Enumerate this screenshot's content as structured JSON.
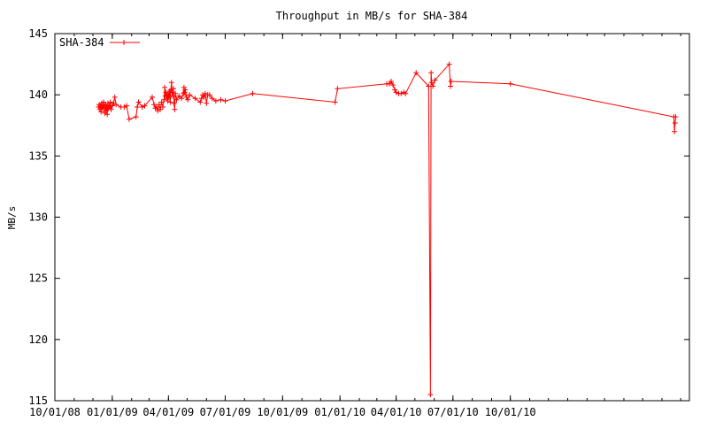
{
  "chart_data": {
    "type": "line",
    "title": "Throughput in MB/s for SHA-384",
    "xlabel": "",
    "ylabel": "MB/s",
    "ylim": [
      115,
      145
    ],
    "xlim": [
      "2008-10-01",
      "2011-07-15"
    ],
    "y_ticks": [
      "115",
      "120",
      "125",
      "130",
      "135",
      "140",
      "145"
    ],
    "x_ticks": [
      "10/01/08",
      "01/01/09",
      "04/01/09",
      "07/01/09",
      "10/01/09",
      "01/01/10",
      "04/01/10",
      "07/01/10",
      "10/01/10"
    ],
    "legend_position": "top-left",
    "grid": false,
    "series": [
      {
        "name": "SHA-384",
        "color": "#ff0000",
        "marker": "plus",
        "points": [
          [
            "2008-12-10",
            139.0
          ],
          [
            "2008-12-11",
            139.2
          ],
          [
            "2008-12-12",
            138.8
          ],
          [
            "2008-12-13",
            139.1
          ],
          [
            "2008-12-14",
            138.6
          ],
          [
            "2008-12-15",
            139.3
          ],
          [
            "2008-12-16",
            139.0
          ],
          [
            "2008-12-17",
            138.9
          ],
          [
            "2008-12-18",
            139.4
          ],
          [
            "2008-12-19",
            139.1
          ],
          [
            "2008-12-20",
            138.5
          ],
          [
            "2008-12-21",
            139.2
          ],
          [
            "2008-12-22",
            138.7
          ],
          [
            "2008-12-23",
            139.0
          ],
          [
            "2008-12-24",
            138.4
          ],
          [
            "2008-12-25",
            139.3
          ],
          [
            "2008-12-26",
            138.9
          ],
          [
            "2008-12-27",
            139.1
          ],
          [
            "2008-12-28",
            139.0
          ],
          [
            "2008-12-29",
            139.4
          ],
          [
            "2008-12-30",
            138.8
          ],
          [
            "2009-01-01",
            139.1
          ],
          [
            "2009-01-03",
            139.3
          ],
          [
            "2009-01-05",
            139.8
          ],
          [
            "2009-01-07",
            139.2
          ],
          [
            "2009-01-15",
            139.0
          ],
          [
            "2009-01-20",
            139.0
          ],
          [
            "2009-01-24",
            139.1
          ],
          [
            "2009-01-28",
            138.0
          ],
          [
            "2009-02-08",
            138.2
          ],
          [
            "2009-02-10",
            139.0
          ],
          [
            "2009-02-12",
            139.4
          ],
          [
            "2009-02-18",
            139.0
          ],
          [
            "2009-02-22",
            139.1
          ],
          [
            "2009-03-06",
            139.8
          ],
          [
            "2009-03-09",
            139.2
          ],
          [
            "2009-03-11",
            138.9
          ],
          [
            "2009-03-13",
            139.0
          ],
          [
            "2009-03-15",
            138.7
          ],
          [
            "2009-03-17",
            139.2
          ],
          [
            "2009-03-19",
            138.8
          ],
          [
            "2009-03-21",
            139.4
          ],
          [
            "2009-03-23",
            139.0
          ],
          [
            "2009-03-25",
            139.6
          ],
          [
            "2009-03-26",
            140.6
          ],
          [
            "2009-03-27",
            139.9
          ],
          [
            "2009-03-28",
            140.2
          ],
          [
            "2009-03-29",
            139.7
          ],
          [
            "2009-03-30",
            140.0
          ],
          [
            "2009-03-31",
            139.5
          ],
          [
            "2009-04-01",
            140.1
          ],
          [
            "2009-04-02",
            139.8
          ],
          [
            "2009-04-03",
            140.3
          ],
          [
            "2009-04-04",
            139.4
          ],
          [
            "2009-04-05",
            140.4
          ],
          [
            "2009-04-06",
            141.0
          ],
          [
            "2009-04-07",
            140.2
          ],
          [
            "2009-04-08",
            139.9
          ],
          [
            "2009-04-09",
            140.5
          ],
          [
            "2009-04-10",
            139.3
          ],
          [
            "2009-04-11",
            138.8
          ],
          [
            "2009-04-12",
            140.1
          ],
          [
            "2009-04-14",
            139.6
          ],
          [
            "2009-04-18",
            139.9
          ],
          [
            "2009-04-22",
            139.7
          ],
          [
            "2009-04-25",
            140.1
          ],
          [
            "2009-04-26",
            140.6
          ],
          [
            "2009-04-27",
            140.2
          ],
          [
            "2009-04-28",
            140.4
          ],
          [
            "2009-04-29",
            140.0
          ],
          [
            "2009-04-30",
            139.8
          ],
          [
            "2009-05-02",
            139.6
          ],
          [
            "2009-05-05",
            140.0
          ],
          [
            "2009-05-14",
            139.7
          ],
          [
            "2009-05-22",
            139.4
          ],
          [
            "2009-05-24",
            139.7
          ],
          [
            "2009-05-26",
            140.0
          ],
          [
            "2009-05-28",
            139.8
          ],
          [
            "2009-05-30",
            140.1
          ],
          [
            "2009-06-01",
            139.3
          ],
          [
            "2009-06-03",
            140.0
          ],
          [
            "2009-06-06",
            140.0
          ],
          [
            "2009-06-10",
            139.7
          ],
          [
            "2009-06-16",
            139.5
          ],
          [
            "2009-06-24",
            139.6
          ],
          [
            "2009-07-01",
            139.5
          ],
          [
            "2009-08-14",
            140.1
          ],
          [
            "2009-12-24",
            139.4
          ],
          [
            "2009-12-28",
            140.5
          ],
          [
            "2010-03-17",
            140.9
          ],
          [
            "2010-03-21",
            140.9
          ],
          [
            "2010-03-24",
            141.1
          ],
          [
            "2010-03-27",
            140.8
          ],
          [
            "2010-03-30",
            140.4
          ],
          [
            "2010-04-01",
            140.2
          ],
          [
            "2010-04-05",
            140.1
          ],
          [
            "2010-04-09",
            140.1
          ],
          [
            "2010-04-13",
            140.2
          ],
          [
            "2010-04-16",
            140.1
          ],
          [
            "2010-05-03",
            141.8
          ],
          [
            "2010-05-23",
            140.7
          ],
          [
            "2010-05-26",
            115.5
          ],
          [
            "2010-05-27",
            141.8
          ],
          [
            "2010-05-28",
            141.0
          ],
          [
            "2010-05-30",
            140.7
          ],
          [
            "2010-06-02",
            141.2
          ],
          [
            "2010-06-25",
            142.5
          ],
          [
            "2010-06-27",
            140.7
          ],
          [
            "2010-06-28",
            141.1
          ],
          [
            "2010-10-01",
            140.9
          ],
          [
            "2011-06-20",
            138.2
          ],
          [
            "2011-06-21",
            137.0
          ],
          [
            "2011-06-22",
            137.7
          ],
          [
            "2011-06-23",
            138.2
          ]
        ]
      }
    ]
  }
}
